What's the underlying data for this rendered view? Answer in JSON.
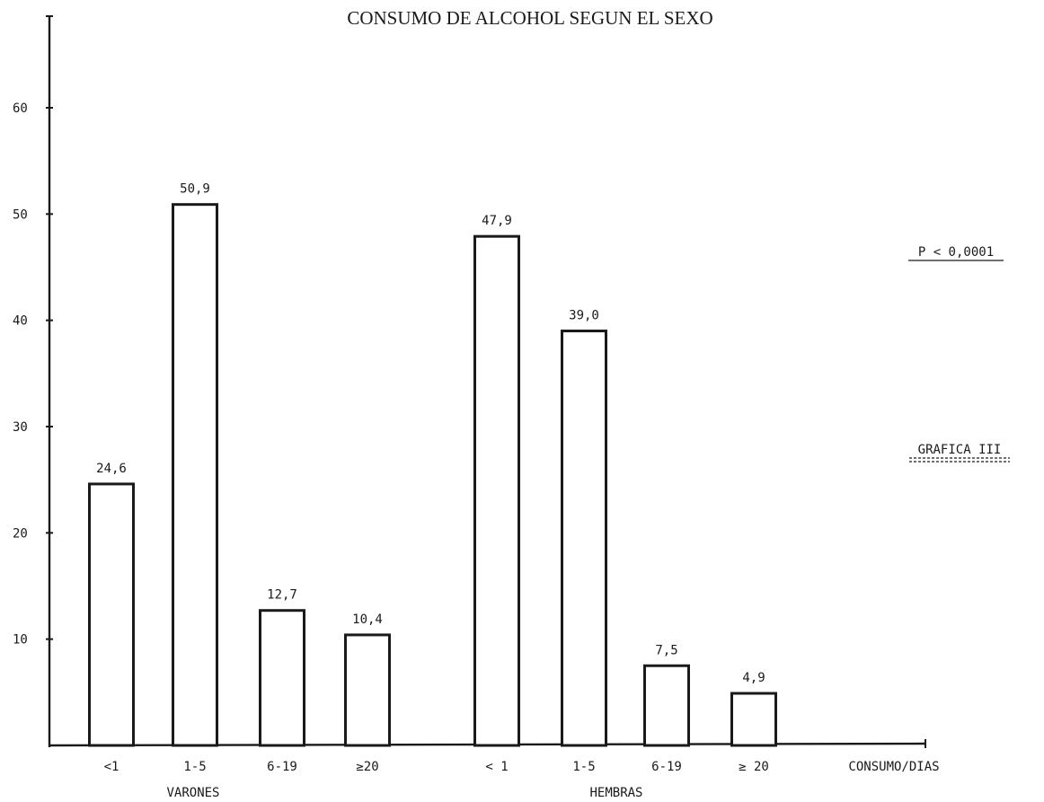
{
  "chart_data": {
    "type": "bar",
    "title": "CONSUMO DE ALCOHOL SEGUN EL SEXO",
    "ylim": [
      0,
      70
    ],
    "yticks": [
      10,
      20,
      30,
      40,
      50,
      60
    ],
    "xlabel": "CONSUMO/DIAS",
    "groups": [
      {
        "name": "VARONES",
        "bars": [
          {
            "category": "<1",
            "value": 24.6,
            "label": "24,6"
          },
          {
            "category": "1-5",
            "value": 50.9,
            "label": "50,9"
          },
          {
            "category": "6-19",
            "value": 12.7,
            "label": "12,7"
          },
          {
            "category": "≥20",
            "value": 10.4,
            "label": "10,4"
          }
        ]
      },
      {
        "name": "HEMBRAS",
        "bars": [
          {
            "category": "< 1",
            "value": 47.9,
            "label": "47,9"
          },
          {
            "category": "1-5",
            "value": 39.0,
            "label": "39,0"
          },
          {
            "category": "6-19",
            "value": 7.5,
            "label": "7,5"
          },
          {
            "category": "≥ 20",
            "value": 4.9,
            "label": "4,9"
          }
        ]
      }
    ],
    "annotations": {
      "pvalue": "P < 0,0001",
      "figure": "GRAFICA III"
    },
    "grid": false
  }
}
